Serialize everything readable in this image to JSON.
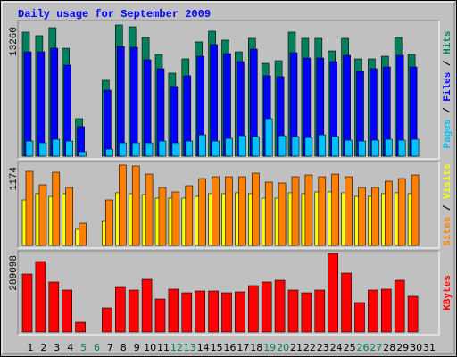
{
  "title": "Daily usage for September 2009",
  "legend_separator": " / ",
  "chart_data": [
    {
      "type": "bar",
      "series": [
        {
          "name": "Pages",
          "color": "#00c0ff",
          "values": [
            1530,
            1350,
            1710,
            1530,
            450,
            0,
            720,
            1350,
            1350,
            1350,
            1530,
            1350,
            1530,
            2160,
            1530,
            1800,
            2070,
            1980,
            3790,
            2070,
            1980,
            1890,
            2160,
            1980,
            1620,
            1530,
            1620,
            1710,
            1620,
            1710,
            null
          ]
        },
        {
          "name": "Files",
          "color": "#0000ff",
          "values": [
            10550,
            10550,
            10910,
            9200,
            2980,
            0,
            6670,
            11090,
            11000,
            9740,
            8840,
            7040,
            8120,
            10100,
            11280,
            10370,
            9560,
            10820,
            8120,
            8030,
            10460,
            9920,
            9920,
            9560,
            10190,
            8570,
            8840,
            9020,
            10190,
            9020,
            null
          ]
        },
        {
          "name": "Hits",
          "color": "#00805c",
          "values": [
            12540,
            12180,
            12990,
            10910,
            3790,
            0,
            7670,
            13260,
            13080,
            12000,
            10280,
            8390,
            9830,
            11550,
            12630,
            11730,
            10550,
            11910,
            9380,
            9650,
            12540,
            11910,
            11910,
            10640,
            11910,
            9830,
            9830,
            10100,
            12000,
            10280,
            null
          ]
        }
      ],
      "ylim": [
        0,
        13260
      ],
      "yticks": [
        13260
      ],
      "grid": false
    },
    {
      "type": "bar",
      "series": [
        {
          "name": "Sites",
          "color": "#ff8000",
          "values": [
            1083,
            887,
            1069,
            848,
            326,
            0,
            665,
            1174,
            1161,
            1043,
            848,
            783,
            874,
            978,
            1004,
            1004,
            1004,
            1056,
            926,
            913,
            1004,
            1030,
            1004,
            1043,
            1004,
            848,
            848,
            939,
            978,
            1030,
            null
          ]
        },
        {
          "name": "Visits",
          "color": "#ffff00",
          "values": [
            665,
            757,
            717,
            757,
            235,
            0,
            352,
            770,
            757,
            743,
            691,
            691,
            691,
            717,
            757,
            757,
            770,
            757,
            691,
            691,
            770,
            757,
            783,
            783,
            770,
            717,
            717,
            757,
            770,
            757,
            null
          ]
        }
      ],
      "ylim": [
        0,
        1174
      ],
      "yticks": [
        1174
      ],
      "grid": false
    },
    {
      "type": "bar",
      "categories": [
        "1",
        "2",
        "3",
        "4",
        "5",
        "6",
        "7",
        "8",
        "9",
        "10",
        "11",
        "12",
        "13",
        "14",
        "15",
        "16",
        "17",
        "18",
        "19",
        "20",
        "21",
        "22",
        "23",
        "24",
        "25",
        "26",
        "27",
        "28",
        "29",
        "30",
        "31"
      ],
      "category_colors": [
        "#000000",
        "#000000",
        "#000000",
        "#000000",
        "#00805c",
        "#00805c",
        "#000000",
        "#000000",
        "#000000",
        "#000000",
        "#000000",
        "#00805c",
        "#00805c",
        "#000000",
        "#000000",
        "#000000",
        "#000000",
        "#000000",
        "#00805c",
        "#00805c",
        "#000000",
        "#000000",
        "#000000",
        "#000000",
        "#000000",
        "#00805c",
        "#00805c",
        "#000000",
        "#000000",
        "#000000",
        "#000000"
      ],
      "series": [
        {
          "name": "KBytes",
          "color": "#ff0000",
          "values": [
            213500,
            259500,
            184000,
            154400,
            36100,
            0,
            88700,
            164300,
            154400,
            193800,
            121500,
            157700,
            144500,
            151100,
            151100,
            144500,
            147800,
            170800,
            184000,
            190500,
            154400,
            144500,
            154400,
            289098,
            216800,
            108400,
            154400,
            157700,
            190500,
            131400,
            null
          ]
        }
      ],
      "ylim": [
        0,
        289098
      ],
      "yticks": [
        289098
      ],
      "grid": false
    }
  ]
}
